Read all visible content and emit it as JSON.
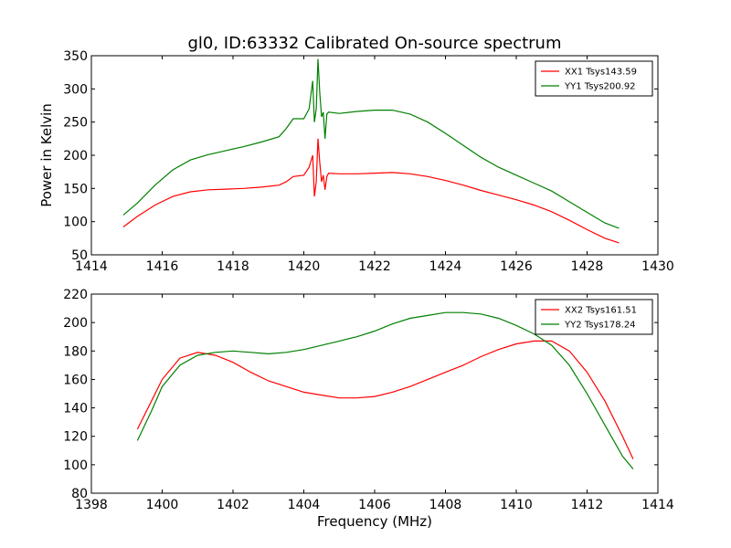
{
  "figure": {
    "title": "gl0, ID:63332 Calibrated On-source spectrum"
  },
  "chart_data": [
    {
      "type": "line",
      "title": "gl0, ID:63332 Calibrated On-source spectrum",
      "xlabel": "",
      "ylabel": "Power in Kelvin",
      "xlim": [
        1414,
        1430
      ],
      "ylim": [
        50,
        350
      ],
      "xticks": [
        1414,
        1416,
        1418,
        1420,
        1422,
        1424,
        1426,
        1428,
        1430
      ],
      "yticks": [
        50,
        100,
        150,
        200,
        250,
        300,
        350
      ],
      "legend": "top-right",
      "grid": false,
      "series": [
        {
          "name": "XX1 Tsys143.59",
          "color": "#ff0000",
          "x": [
            1414.9,
            1415.3,
            1415.8,
            1416.3,
            1416.8,
            1417.3,
            1417.8,
            1418.3,
            1418.8,
            1419.3,
            1419.5,
            1419.7,
            1420.0,
            1420.15,
            1420.25,
            1420.3,
            1420.35,
            1420.4,
            1420.45,
            1420.5,
            1420.55,
            1420.6,
            1420.65,
            1420.7,
            1421.0,
            1421.5,
            1422.0,
            1422.5,
            1423.0,
            1423.5,
            1424.0,
            1424.5,
            1425.0,
            1425.5,
            1426.0,
            1426.5,
            1427.0,
            1427.5,
            1428.0,
            1428.5,
            1428.9
          ],
          "y": [
            92,
            108,
            125,
            138,
            145,
            148,
            149,
            150,
            152,
            155,
            160,
            168,
            170,
            182,
            200,
            138,
            160,
            225,
            190,
            160,
            170,
            148,
            168,
            173,
            172,
            172,
            173,
            174,
            172,
            168,
            162,
            155,
            147,
            140,
            133,
            125,
            115,
            102,
            88,
            75,
            68
          ]
        },
        {
          "name": "YY1 Tsys200.92",
          "color": "#008000",
          "x": [
            1414.9,
            1415.3,
            1415.8,
            1416.3,
            1416.8,
            1417.3,
            1417.8,
            1418.3,
            1418.8,
            1419.3,
            1419.5,
            1419.7,
            1420.0,
            1420.15,
            1420.25,
            1420.3,
            1420.35,
            1420.4,
            1420.45,
            1420.5,
            1420.55,
            1420.6,
            1420.65,
            1420.7,
            1421.0,
            1421.5,
            1422.0,
            1422.5,
            1423.0,
            1423.5,
            1424.0,
            1424.5,
            1425.0,
            1425.5,
            1426.0,
            1426.5,
            1427.0,
            1427.5,
            1428.0,
            1428.5,
            1428.9
          ],
          "y": [
            110,
            128,
            155,
            178,
            193,
            201,
            207,
            213,
            220,
            228,
            240,
            255,
            255,
            270,
            312,
            250,
            270,
            345,
            295,
            258,
            265,
            225,
            262,
            265,
            263,
            266,
            268,
            268,
            262,
            250,
            233,
            215,
            197,
            182,
            170,
            158,
            146,
            130,
            114,
            98,
            90
          ]
        }
      ]
    },
    {
      "type": "line",
      "title": "",
      "xlabel": "Frequency (MHz)",
      "ylabel": "",
      "xlim": [
        1398,
        1414
      ],
      "ylim": [
        80,
        220
      ],
      "xticks": [
        1398,
        1400,
        1402,
        1404,
        1406,
        1408,
        1410,
        1412,
        1414
      ],
      "yticks": [
        80,
        100,
        120,
        140,
        160,
        180,
        200,
        220
      ],
      "legend": "top-right",
      "grid": false,
      "series": [
        {
          "name": "XX2 Tsys161.51",
          "color": "#ff0000",
          "x": [
            1399.3,
            1399.7,
            1400.0,
            1400.5,
            1401.0,
            1401.5,
            1402.0,
            1402.5,
            1403.0,
            1403.5,
            1404.0,
            1404.5,
            1405.0,
            1405.5,
            1406.0,
            1406.5,
            1407.0,
            1407.5,
            1408.0,
            1408.5,
            1409.0,
            1409.5,
            1410.0,
            1410.5,
            1411.0,
            1411.5,
            1412.0,
            1412.5,
            1413.0,
            1413.3
          ],
          "y": [
            125,
            145,
            160,
            175,
            179,
            177,
            172,
            165,
            159,
            155,
            151,
            149,
            147,
            147,
            148,
            151,
            155,
            160,
            165,
            170,
            176,
            181,
            185,
            187,
            187,
            180,
            165,
            145,
            120,
            104
          ]
        },
        {
          "name": "YY2 Tsys178.24",
          "color": "#008000",
          "x": [
            1399.3,
            1399.7,
            1400.0,
            1400.5,
            1401.0,
            1401.5,
            1402.0,
            1402.5,
            1403.0,
            1403.5,
            1404.0,
            1404.5,
            1405.0,
            1405.5,
            1406.0,
            1406.5,
            1407.0,
            1407.5,
            1408.0,
            1408.5,
            1409.0,
            1409.5,
            1410.0,
            1410.5,
            1411.0,
            1411.5,
            1412.0,
            1412.5,
            1413.0,
            1413.3
          ],
          "y": [
            117,
            138,
            155,
            170,
            177,
            179,
            180,
            179,
            178,
            179,
            181,
            184,
            187,
            190,
            194,
            199,
            203,
            205,
            207,
            207,
            206,
            203,
            198,
            192,
            184,
            170,
            150,
            128,
            106,
            97
          ]
        }
      ]
    }
  ]
}
